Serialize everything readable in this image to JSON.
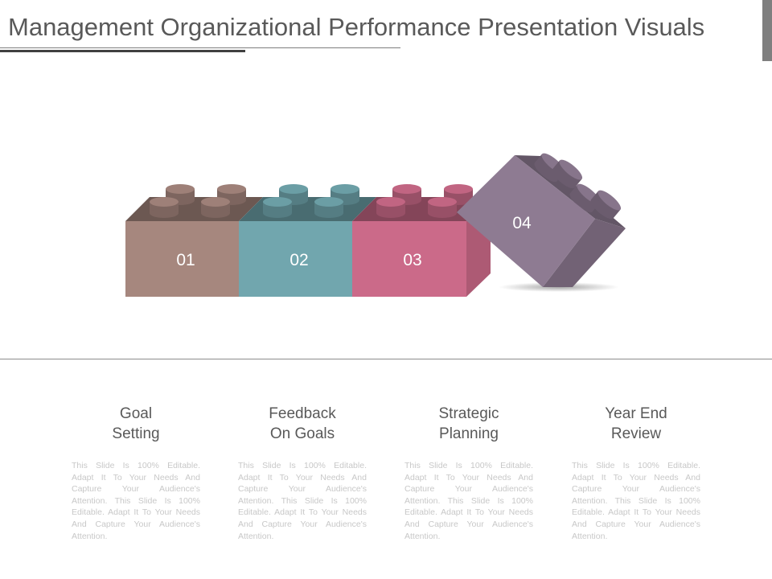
{
  "title": "Management Organizational Performance Presentation Visuals",
  "blocks": [
    {
      "label": "01",
      "color": "#a6877e"
    },
    {
      "label": "02",
      "color": "#71a6ae"
    },
    {
      "label": "03",
      "color": "#cb6a89"
    },
    {
      "label": "04",
      "color": "#8e7b92"
    }
  ],
  "items": [
    {
      "heading_line1": "Goal",
      "heading_line2": "Setting",
      "text": "This Slide Is 100% Editable. Adapt It To Your Needs And Capture Your Audience's Attention. This Slide Is 100% Editable. Adapt It To Your Needs And Capture Your Audience's Attention."
    },
    {
      "heading_line1": "Feedback",
      "heading_line2": "On Goals",
      "text": "This Slide Is 100% Editable. Adapt It To Your Needs And Capture Your Audience's Attention. This Slide Is 100% Editable. Adapt It To Your Needs And Capture Your Audience's Attention."
    },
    {
      "heading_line1": "Strategic",
      "heading_line2": "Planning",
      "text": "This Slide Is 100% Editable. Adapt It To Your Needs And Capture Your Audience's Attention."
    },
    {
      "heading_line1": "Year End",
      "heading_line2": "Review",
      "text": "This Slide Is 100% Editable. Adapt It To Your Needs And Capture Your Audience's Attention."
    }
  ]
}
